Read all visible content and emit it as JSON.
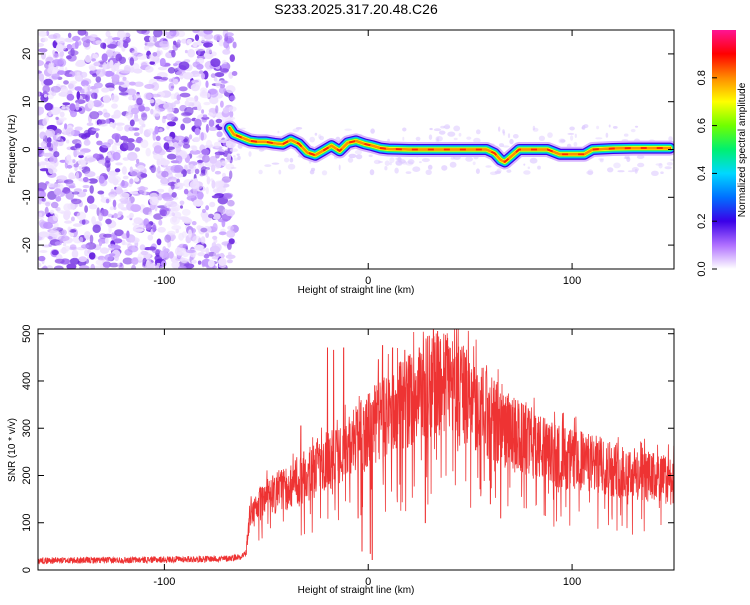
{
  "figure_title": "S233.2025.317.20.48.C26",
  "chart_data": [
    {
      "type": "heatmap",
      "name": "spectrogram",
      "xlabel": "Height of straight line (km)",
      "ylabel": "Frequency (Hz)",
      "xlim": [
        -162,
        150
      ],
      "ylim": [
        -25,
        25
      ],
      "xticks": [
        -100,
        0,
        100
      ],
      "yticks": [
        -20,
        -10,
        0,
        10,
        20
      ],
      "colorbar": {
        "label": "Normalized spectral amplitude",
        "range": [
          0.0,
          1.0
        ],
        "ticks": [
          0.0,
          0.2,
          0.4,
          0.6,
          0.8
        ],
        "tick_labels": [
          "0.0",
          "0.2",
          "0.4",
          "0.6",
          "0.8"
        ],
        "colors": [
          "#ffffff",
          "#b070ff",
          "#3a00e8",
          "#0070ff",
          "#00d8ff",
          "#00f070",
          "#70ff00",
          "#ffff00",
          "#ff8c00",
          "#ff0000",
          "#ff1493"
        ]
      },
      "noise_region_x": [
        -162,
        -67
      ],
      "ridge": {
        "x": [
          -68,
          -66,
          -62,
          -58,
          -54,
          -50,
          -46,
          -42,
          -38,
          -34,
          -30,
          -26,
          -22,
          -18,
          -14,
          -10,
          -6,
          -2,
          2,
          6,
          10,
          20,
          30,
          40,
          50,
          55,
          58,
          62,
          65,
          67,
          70,
          74,
          78,
          82,
          88,
          94,
          98,
          102,
          106,
          110,
          120,
          130,
          140,
          148
        ],
        "y": [
          4.5,
          3.2,
          2.5,
          1.8,
          1.6,
          1.6,
          1.3,
          1.1,
          2.0,
          1.2,
          -0.6,
          -1.2,
          -0.2,
          0.8,
          -0.3,
          1.4,
          1.8,
          1.2,
          0.8,
          0.3,
          0.1,
          0.0,
          0.0,
          0.0,
          0.0,
          0.0,
          0.0,
          -0.8,
          -2.2,
          -2.6,
          -1.5,
          0.0,
          0.0,
          0.0,
          0.0,
          -1.0,
          -1.0,
          -1.0,
          -1.0,
          0.0,
          0.2,
          0.3,
          0.3,
          0.3
        ]
      }
    },
    {
      "type": "line",
      "name": "snr",
      "xlabel": "Height of straight line (km)",
      "ylabel": "SNR (10 * v/v)",
      "xlim": [
        -162,
        150
      ],
      "ylim": [
        0,
        510
      ],
      "xticks": [
        -100,
        0,
        100
      ],
      "yticks": [
        0,
        100,
        200,
        300,
        400,
        500
      ],
      "color": "#ee3333",
      "envelope": {
        "x": [
          -162,
          -120,
          -70,
          -63,
          -60,
          -58,
          -50,
          -40,
          -30,
          -20,
          -10,
          0,
          10,
          20,
          30,
          35,
          40,
          50,
          60,
          70,
          80,
          90,
          100,
          110,
          120,
          130,
          140,
          150
        ],
        "y": [
          20,
          21,
          24,
          28,
          35,
          120,
          150,
          175,
          200,
          230,
          255,
          295,
          330,
          360,
          390,
          400,
          395,
          360,
          320,
          290,
          270,
          245,
          235,
          225,
          215,
          205,
          195,
          190
        ]
      },
      "peaks": [
        {
          "x": -20,
          "y": 470
        },
        {
          "x": -17,
          "y": 465
        },
        {
          "x": -33,
          "y": 305
        },
        {
          "x": -12,
          "y": 470
        },
        {
          "x": 5,
          "y": 445
        },
        {
          "x": 7,
          "y": 475
        },
        {
          "x": 12,
          "y": 470
        },
        {
          "x": 18,
          "y": 465
        },
        {
          "x": 25,
          "y": 470
        },
        {
          "x": 30,
          "y": 495
        },
        {
          "x": 32,
          "y": 510
        },
        {
          "x": 34,
          "y": 505
        },
        {
          "x": 40,
          "y": 470
        },
        {
          "x": 52,
          "y": 400
        }
      ],
      "dips": [
        {
          "x": -5,
          "y": 110
        },
        {
          "x": -3,
          "y": 40
        },
        {
          "x": 1,
          "y": 35
        },
        {
          "x": 2,
          "y": 22
        },
        {
          "x": 28,
          "y": 100
        },
        {
          "x": 65,
          "y": 110
        },
        {
          "x": 60,
          "y": 140
        }
      ]
    }
  ]
}
